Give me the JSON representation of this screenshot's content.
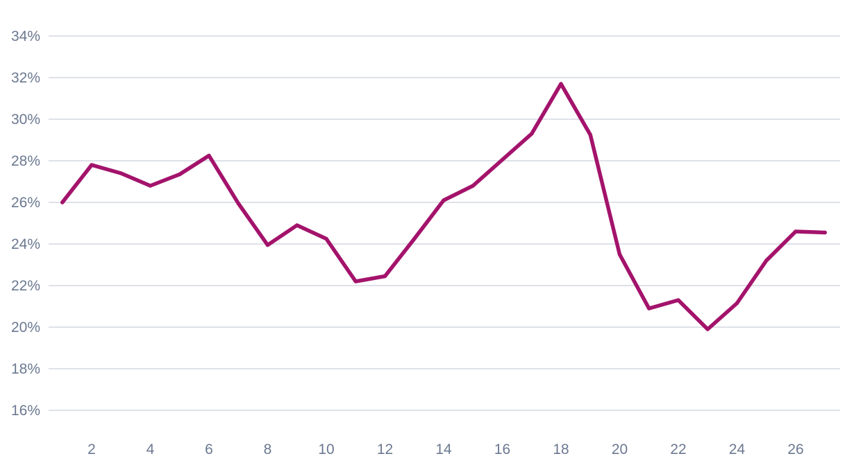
{
  "chart_data": {
    "type": "line",
    "x": [
      1,
      2,
      3,
      4,
      5,
      6,
      7,
      8,
      9,
      10,
      11,
      12,
      13,
      14,
      15,
      16,
      17,
      18,
      19,
      20,
      21,
      22,
      23,
      24,
      25,
      26,
      27
    ],
    "series": [
      {
        "values": [
          26.0,
          27.8,
          27.4,
          26.8,
          27.35,
          28.25,
          25.95,
          23.95,
          24.9,
          24.25,
          22.2,
          22.45,
          24.25,
          26.1,
          26.8,
          28.05,
          29.3,
          31.7,
          29.25,
          23.5,
          20.9,
          21.3,
          19.9,
          21.15,
          23.2,
          24.6,
          24.55
        ],
        "color": "#a3136b"
      }
    ],
    "xlim": [
      0,
      28
    ],
    "ylim": [
      15,
      35
    ],
    "x_ticks": [
      2,
      4,
      6,
      8,
      10,
      12,
      14,
      16,
      18,
      20,
      22,
      24,
      26
    ],
    "y_ticks": [
      16,
      18,
      20,
      22,
      24,
      26,
      28,
      30,
      32,
      34
    ],
    "y_tick_suffix": "%",
    "grid": true,
    "title": "",
    "xlabel": "",
    "ylabel": ""
  }
}
